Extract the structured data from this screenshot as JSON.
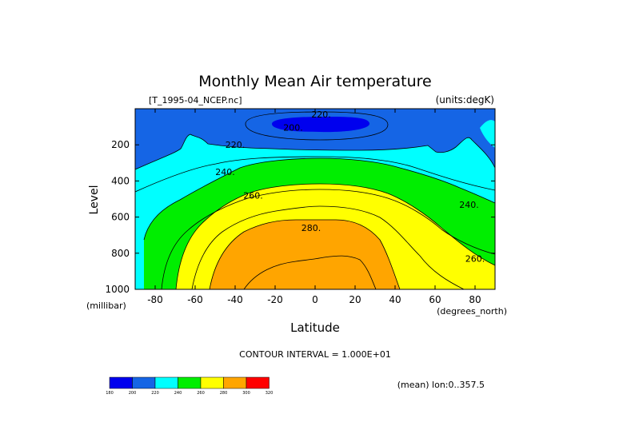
{
  "chart_data": {
    "type": "contour",
    "title": "Monthly Mean Air temperature",
    "subtitle_left": "[T_1995-04_NCEP.nc]",
    "subtitle_right": "(units:degK)",
    "xlabel": "Latitude",
    "ylabel": "Level",
    "x_units": "(degrees_north)",
    "y_units": "(millibar)",
    "xlim": [
      -90,
      90
    ],
    "ylim": [
      1000,
      0
    ],
    "x_ticks": [
      "-80",
      "-60",
      "-40",
      "-20",
      "0",
      "20",
      "40",
      "60",
      "80"
    ],
    "x_tick_values": [
      -80,
      -60,
      -40,
      -20,
      0,
      20,
      40,
      60,
      80
    ],
    "y_ticks": [
      "200",
      "400",
      "600",
      "800",
      "1000"
    ],
    "y_tick_values": [
      200,
      400,
      600,
      800,
      1000
    ],
    "contour_interval_text": "CONTOUR INTERVAL = 1.000E+01",
    "mean_text": "(mean) lon:0..357.5",
    "contour_labels": [
      {
        "text": "220.",
        "lat": 3,
        "level": 30
      },
      {
        "text": "200.",
        "lat": -11,
        "level": 105
      },
      {
        "text": "220.",
        "lat": -40,
        "level": 200
      },
      {
        "text": "240.",
        "lat": -45,
        "level": 350
      },
      {
        "text": "260.",
        "lat": -31,
        "level": 480
      },
      {
        "text": "280.",
        "lat": -2,
        "level": 660
      },
      {
        "text": "240.",
        "lat": 77,
        "level": 530
      },
      {
        "text": "260.",
        "lat": 80,
        "level": 830
      }
    ],
    "colorbar": {
      "levels": [
        "180",
        "200",
        "220",
        "240",
        "260",
        "280",
        "300",
        "320"
      ],
      "colors": [
        "#0000ee",
        "#1565e5",
        "#00ffff",
        "#00ee00",
        "#ffff00",
        "#ffa500",
        "#ff0000"
      ]
    }
  }
}
